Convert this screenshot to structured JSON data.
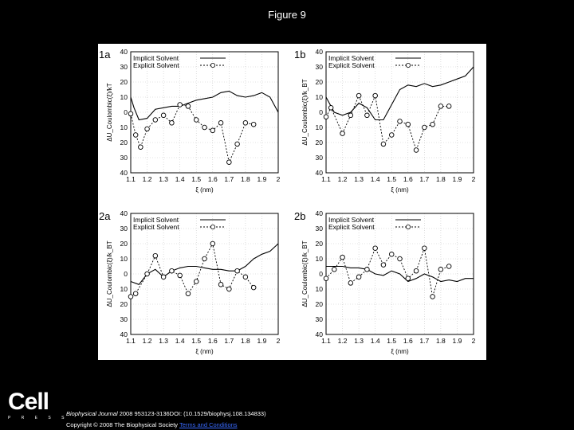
{
  "title": "Figure 9",
  "logo": {
    "word": "Cell",
    "press": "P R E S S"
  },
  "citation": {
    "journal": "Biophysical Journal",
    "rest": " 2008 953123-3136DOI: (10.1529/biophysj.108.134833)"
  },
  "copyright": {
    "text": "Copyright © 2008 The Biophysical Society ",
    "link": "Terms and Conditions"
  },
  "chart_data": [
    {
      "type": "line",
      "panel": "1a",
      "xlabel": "ξ (nm)",
      "ylabel": "ΔU_Coulombic(ξ)/kT",
      "xlim": [
        1.1,
        2
      ],
      "ylim": [
        -40,
        40
      ],
      "xticks": [
        "1.1",
        "1.2",
        "1.3",
        "1.4",
        "1.5",
        "1.6",
        "1.7",
        "1.8",
        "1.9",
        "2"
      ],
      "yticks": [
        "40",
        "30",
        "20",
        "10",
        "0",
        "10",
        "20",
        "30",
        "40"
      ],
      "grid": true,
      "legend_position": "top",
      "series": [
        {
          "name": "Implicit Solvent",
          "style": "solid",
          "x": [
            1.1,
            1.12,
            1.15,
            1.2,
            1.25,
            1.3,
            1.35,
            1.4,
            1.45,
            1.5,
            1.55,
            1.6,
            1.65,
            1.7,
            1.75,
            1.8,
            1.85,
            1.9,
            1.95,
            2.0
          ],
          "y": [
            10,
            3,
            -5,
            -4,
            2,
            3,
            4,
            4,
            6,
            8,
            9,
            10,
            13,
            14,
            11,
            10,
            11,
            13,
            10,
            0
          ]
        },
        {
          "name": "Explicit Solvent",
          "style": "dashed-circles",
          "x": [
            1.1,
            1.13,
            1.16,
            1.2,
            1.25,
            1.3,
            1.35,
            1.4,
            1.45,
            1.5,
            1.55,
            1.6,
            1.65,
            1.7,
            1.75,
            1.8,
            1.85
          ],
          "y": [
            -1,
            -15,
            -23,
            -11,
            -5,
            -2,
            -7,
            5,
            4,
            -5,
            -10,
            -12,
            -7,
            -33,
            -21,
            -7,
            -8
          ]
        }
      ]
    },
    {
      "type": "line",
      "panel": "1b",
      "xlabel": "ξ (nm)",
      "ylabel": "ΔU_Coulombic(ξ)/k_BT",
      "xlim": [
        1.1,
        2
      ],
      "ylim": [
        -40,
        40
      ],
      "xticks": [
        "1.1",
        "1.2",
        "1.3",
        "1.4",
        "1.5",
        "1.6",
        "1.7",
        "1.8",
        "1.9",
        "2"
      ],
      "yticks": [
        "40",
        "30",
        "20",
        "10",
        "0",
        "10",
        "20",
        "30",
        "40"
      ],
      "grid": true,
      "legend_position": "top",
      "series": [
        {
          "name": "Implicit Solvent",
          "style": "solid",
          "x": [
            1.1,
            1.15,
            1.2,
            1.25,
            1.3,
            1.35,
            1.4,
            1.45,
            1.5,
            1.55,
            1.6,
            1.65,
            1.7,
            1.75,
            1.8,
            1.85,
            1.9,
            1.95,
            2.0
          ],
          "y": [
            10,
            0,
            -2,
            0,
            6,
            3,
            -5,
            -5,
            5,
            15,
            18,
            17,
            19,
            17,
            18,
            20,
            22,
            24,
            30
          ]
        },
        {
          "name": "Explicit Solvent",
          "style": "dashed-circles",
          "x": [
            1.1,
            1.13,
            1.2,
            1.25,
            1.3,
            1.35,
            1.4,
            1.45,
            1.5,
            1.55,
            1.6,
            1.65,
            1.7,
            1.75,
            1.8,
            1.85
          ],
          "y": [
            -3,
            3,
            -14,
            -2,
            11,
            -2,
            11,
            -21,
            -15,
            -6,
            -8,
            -25,
            -10,
            -8,
            4,
            4
          ]
        }
      ]
    },
    {
      "type": "line",
      "panel": "2a",
      "xlabel": "ξ (nm)",
      "ylabel": "ΔU_Coulombic(ξ)/k_BT",
      "xlim": [
        1.1,
        2
      ],
      "ylim": [
        -40,
        40
      ],
      "xticks": [
        "1.1",
        "1.2",
        "1.3",
        "1.4",
        "1.5",
        "1.6",
        "1.7",
        "1.8",
        "1.9",
        "2"
      ],
      "yticks": [
        "40",
        "30",
        "20",
        "10",
        "0",
        "10",
        "20",
        "30",
        "40"
      ],
      "grid": true,
      "legend_position": "top",
      "series": [
        {
          "name": "Implicit Solvent",
          "style": "solid",
          "x": [
            1.1,
            1.15,
            1.2,
            1.25,
            1.3,
            1.35,
            1.4,
            1.45,
            1.5,
            1.55,
            1.6,
            1.65,
            1.7,
            1.75,
            1.8,
            1.85,
            1.9,
            1.95,
            2.0
          ],
          "y": [
            -5,
            -7,
            0,
            3,
            -2,
            2,
            4,
            5,
            5,
            4,
            3,
            3,
            2,
            2,
            5,
            10,
            13,
            15,
            20
          ]
        },
        {
          "name": "Explicit Solvent",
          "style": "dashed-circles",
          "x": [
            1.1,
            1.13,
            1.2,
            1.25,
            1.3,
            1.35,
            1.4,
            1.45,
            1.5,
            1.55,
            1.6,
            1.65,
            1.7,
            1.75,
            1.8,
            1.85
          ],
          "y": [
            -15,
            -13,
            0,
            12,
            -2,
            2,
            -1,
            -13,
            -5,
            10,
            20,
            -7,
            -10,
            2,
            -2,
            -9
          ]
        }
      ]
    },
    {
      "type": "line",
      "panel": "2b",
      "xlabel": "ξ (nm)",
      "ylabel": "ΔU_Coulombic(ξ)/k_BT",
      "xlim": [
        1.1,
        2
      ],
      "ylim": [
        -40,
        40
      ],
      "xticks": [
        "1.1",
        "1.2",
        "1.3",
        "1.4",
        "1.5",
        "1.6",
        "1.7",
        "1.8",
        "1.9",
        "2"
      ],
      "yticks": [
        "40",
        "30",
        "20",
        "10",
        "0",
        "10",
        "20",
        "30",
        "40"
      ],
      "grid": true,
      "legend_position": "top",
      "series": [
        {
          "name": "Implicit Solvent",
          "style": "solid",
          "x": [
            1.1,
            1.15,
            1.2,
            1.25,
            1.3,
            1.35,
            1.4,
            1.45,
            1.5,
            1.55,
            1.6,
            1.65,
            1.7,
            1.75,
            1.8,
            1.85,
            1.9,
            1.95,
            2.0
          ],
          "y": [
            5,
            5,
            5,
            4,
            4,
            3,
            0,
            -1,
            2,
            0,
            -5,
            -3,
            0,
            -2,
            -5,
            -4,
            -5,
            -3,
            -3
          ]
        },
        {
          "name": "Explicit Solvent",
          "style": "dashed-circles",
          "x": [
            1.1,
            1.15,
            1.2,
            1.25,
            1.3,
            1.35,
            1.4,
            1.45,
            1.5,
            1.55,
            1.6,
            1.65,
            1.7,
            1.75,
            1.8,
            1.85
          ],
          "y": [
            -3,
            3,
            11,
            -6,
            -2,
            3,
            17,
            6,
            13,
            10,
            -3,
            2,
            17,
            -15,
            3,
            5
          ]
        }
      ]
    }
  ]
}
